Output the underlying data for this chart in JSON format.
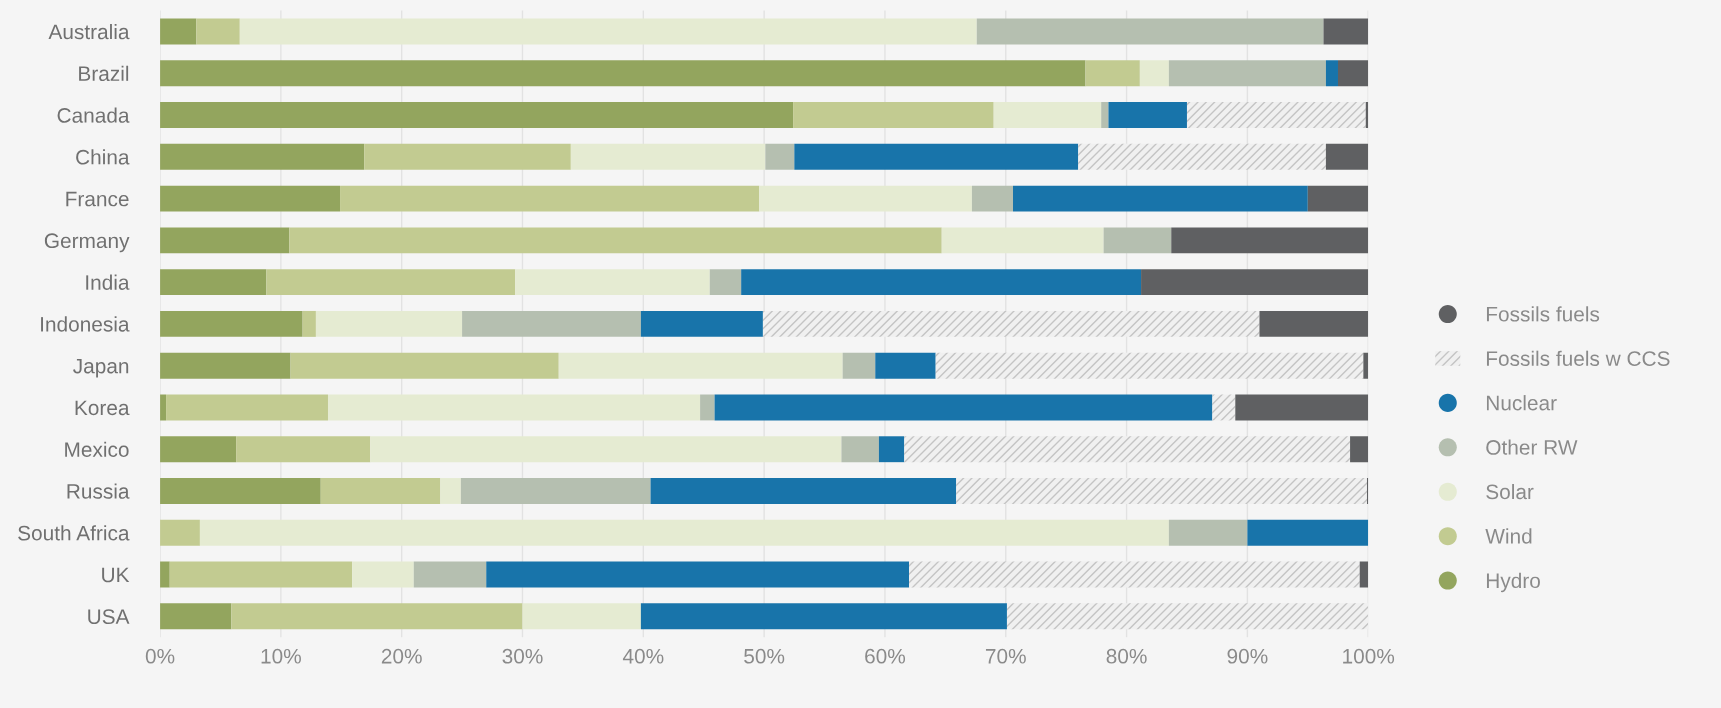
{
  "chart_data": {
    "type": "bar",
    "orientation": "horizontal",
    "stacked": true,
    "categories": [
      "Australia",
      "Brazil",
      "Canada",
      "China",
      "France",
      "Germany",
      "India",
      "Indonesia",
      "Japan",
      "Korea",
      "Mexico",
      "Russia",
      "South Africa",
      "UK",
      "USA"
    ],
    "series": [
      {
        "name": "Hydro",
        "color": "#93a55e",
        "values": [
          3.0,
          76.6,
          52.4,
          16.9,
          14.9,
          10.7,
          8.8,
          11.8,
          10.8,
          0.5,
          6.3,
          13.3,
          0,
          0.8,
          5.9
        ]
      },
      {
        "name": "Wind",
        "color": "#c2cb91",
        "values": [
          3.6,
          4.5,
          16.6,
          17.1,
          34.7,
          54.0,
          20.6,
          1.1,
          22.2,
          13.4,
          11.1,
          9.9,
          3.3,
          15.1,
          24.1
        ]
      },
      {
        "name": "Solar",
        "color": "#e5ebd2",
        "values": [
          61.0,
          2.4,
          8.9,
          16.1,
          17.6,
          13.4,
          16.1,
          12.1,
          23.5,
          30.8,
          39.0,
          1.7,
          80.2,
          5.1,
          9.8
        ]
      },
      {
        "name": "Other RW",
        "color": "#b5bfb0",
        "values": [
          28.7,
          13.0,
          0.6,
          2.4,
          3.4,
          5.6,
          2.6,
          14.8,
          2.7,
          1.2,
          3.1,
          15.7,
          6.5,
          6.0,
          0
        ]
      },
      {
        "name": "Nuclear",
        "color": "#1874aa",
        "values": [
          0,
          1.0,
          6.5,
          23.5,
          24.4,
          0,
          33.1,
          10.1,
          5.0,
          41.2,
          2.1,
          25.3,
          10.0,
          35.0,
          30.3
        ]
      },
      {
        "name": "Fossils fuels w CCS",
        "color": "#c4c4c4",
        "line_style": "dashed",
        "values": [
          0,
          0,
          14.8,
          20.5,
          0,
          0,
          0,
          41.1,
          35.4,
          1.9,
          36.9,
          34.0,
          0,
          37.3,
          29.9
        ]
      },
      {
        "name": "Fossils fuels",
        "color": "#5f6062",
        "values": [
          3.7,
          2.5,
          0.2,
          3.5,
          5.0,
          16.3,
          18.8,
          9.0,
          0.4,
          11.0,
          1.5,
          0.1,
          0,
          0.7,
          0
        ]
      }
    ],
    "xlim": [
      0,
      100
    ],
    "xticks": [
      {
        "value": 0,
        "label": "0%"
      },
      {
        "value": 10,
        "label": "10%"
      },
      {
        "value": 20,
        "label": "20%"
      },
      {
        "value": 30,
        "label": "30%"
      },
      {
        "value": 40,
        "label": "40%"
      },
      {
        "value": 50,
        "label": "50%"
      },
      {
        "value": 60,
        "label": "60%"
      },
      {
        "value": 70,
        "label": "70%"
      },
      {
        "value": 80,
        "label": "80%"
      },
      {
        "value": 90,
        "label": "90%"
      },
      {
        "value": 100,
        "label": "100%"
      }
    ],
    "grid": "x",
    "legend": "right",
    "marker": "circle"
  }
}
